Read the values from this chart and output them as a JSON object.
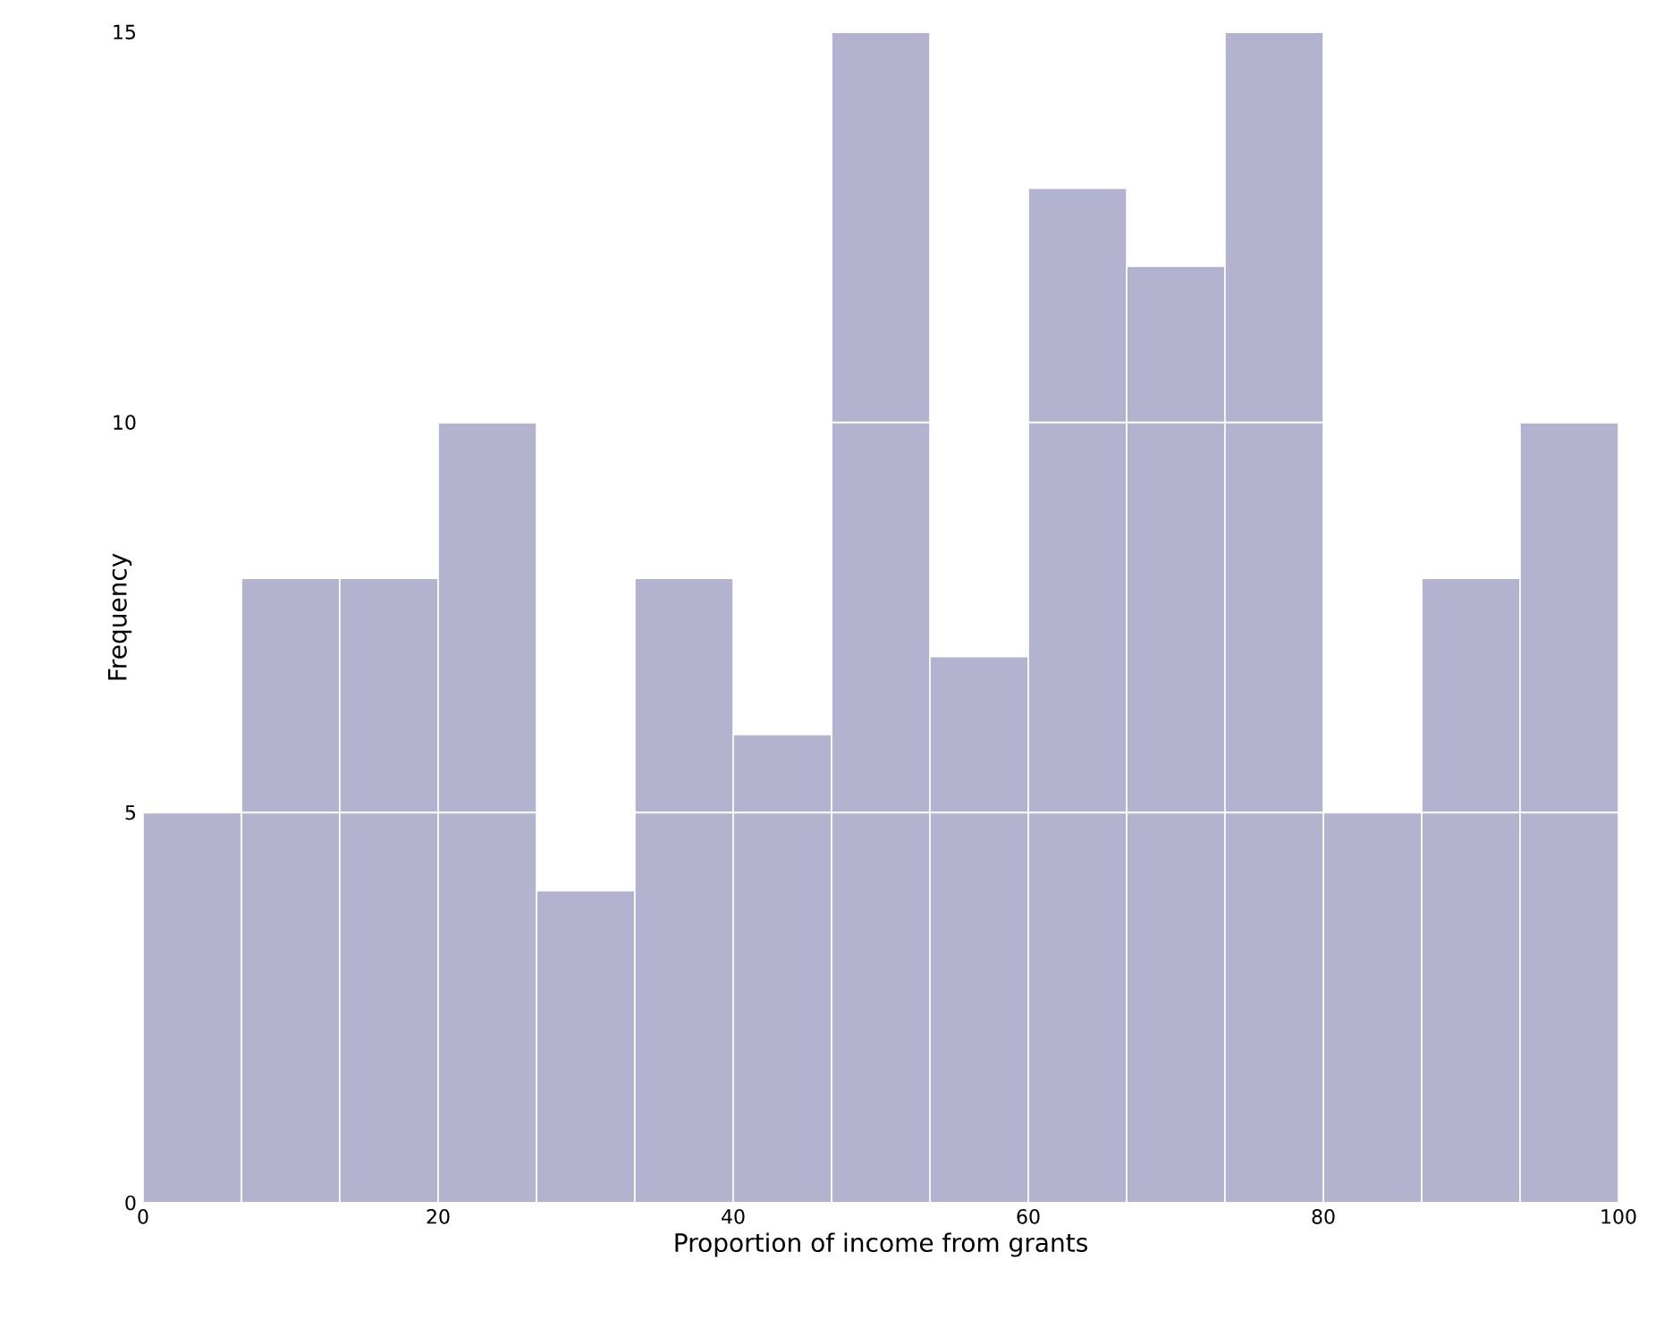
{
  "chart_data": {
    "type": "histogram",
    "xlabel": "Proportion of income from grants",
    "ylabel": "Frequency",
    "bins": [
      0,
      6.67,
      13.33,
      20,
      26.67,
      33.33,
      40,
      46.67,
      53.33,
      60,
      66.67,
      73.33,
      80,
      86.67,
      93.33,
      100
    ],
    "values": [
      5,
      8,
      8,
      10,
      4,
      8,
      6,
      15,
      7,
      13,
      12,
      15,
      5,
      8,
      10
    ],
    "color": "#b3b3cf",
    "xlim": [
      0,
      100
    ],
    "xticks": [
      0,
      20,
      40,
      60,
      80,
      100
    ],
    "ylim": [
      0,
      15
    ],
    "yticks": [
      0,
      5,
      10,
      15
    ],
    "grid": "y"
  }
}
